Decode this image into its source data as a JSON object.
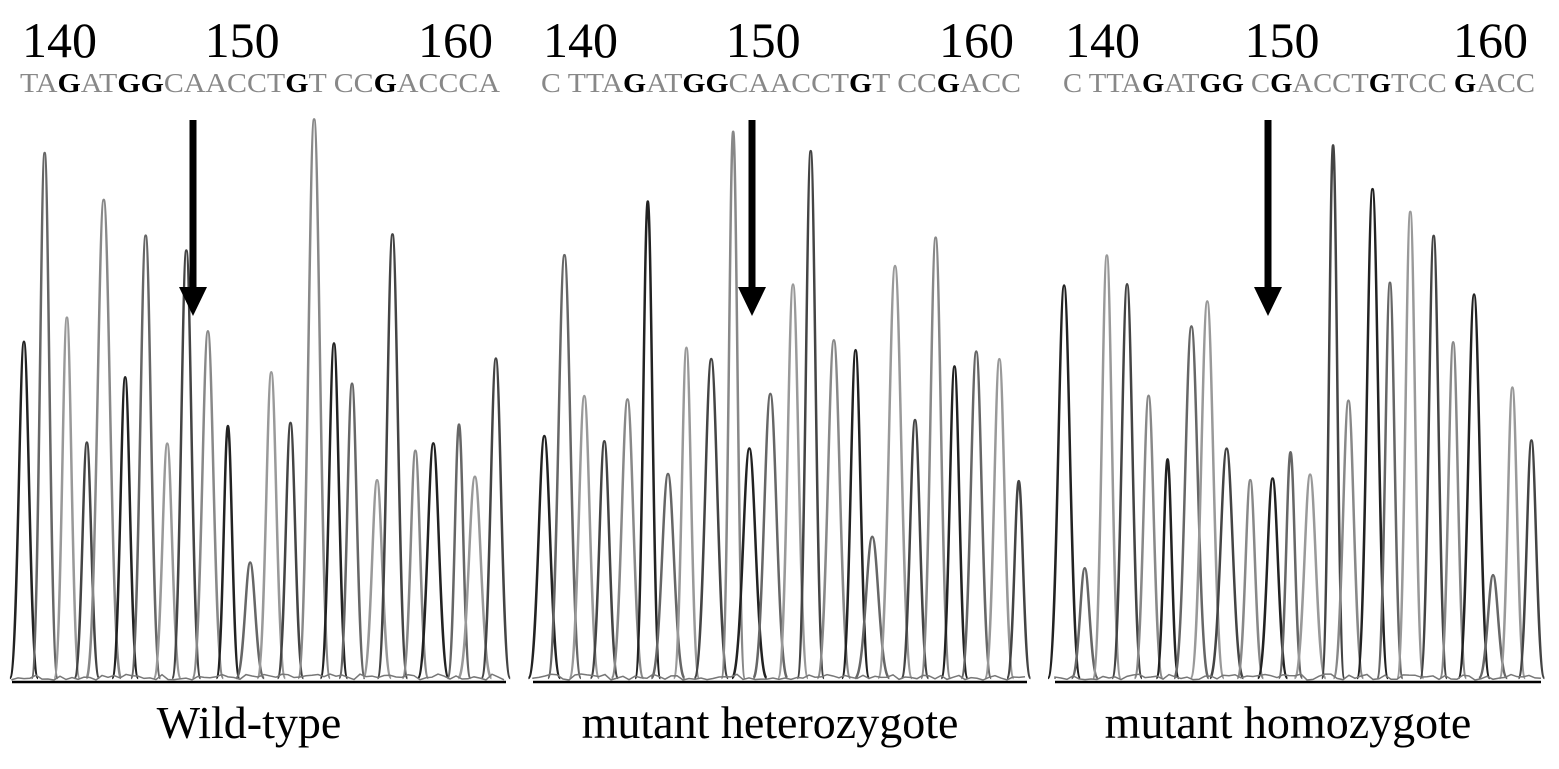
{
  "panels": [
    {
      "positions": [
        "140",
        "150",
        "160"
      ],
      "sequence": [
        "TA",
        "G",
        "AT",
        "GG",
        "CAACCT",
        "G",
        "T CC",
        "G",
        "ACCCA"
      ],
      "caption": "Wild-type"
    },
    {
      "positions": [
        "140",
        "150",
        "160"
      ],
      "sequence": [
        "C TTA",
        "G",
        "AT",
        "GG",
        "CAACCT",
        "G",
        "T CC",
        "G",
        "ACC"
      ],
      "caption": "mutant heterozygote"
    },
    {
      "positions": [
        "140",
        "150",
        "160"
      ],
      "sequence": [
        "C TTA",
        "G",
        "AT",
        "GG",
        " C",
        "G",
        "ACCT",
        "G",
        "TCC ",
        "G",
        "ACC"
      ],
      "caption": "mutant homozygote"
    }
  ]
}
